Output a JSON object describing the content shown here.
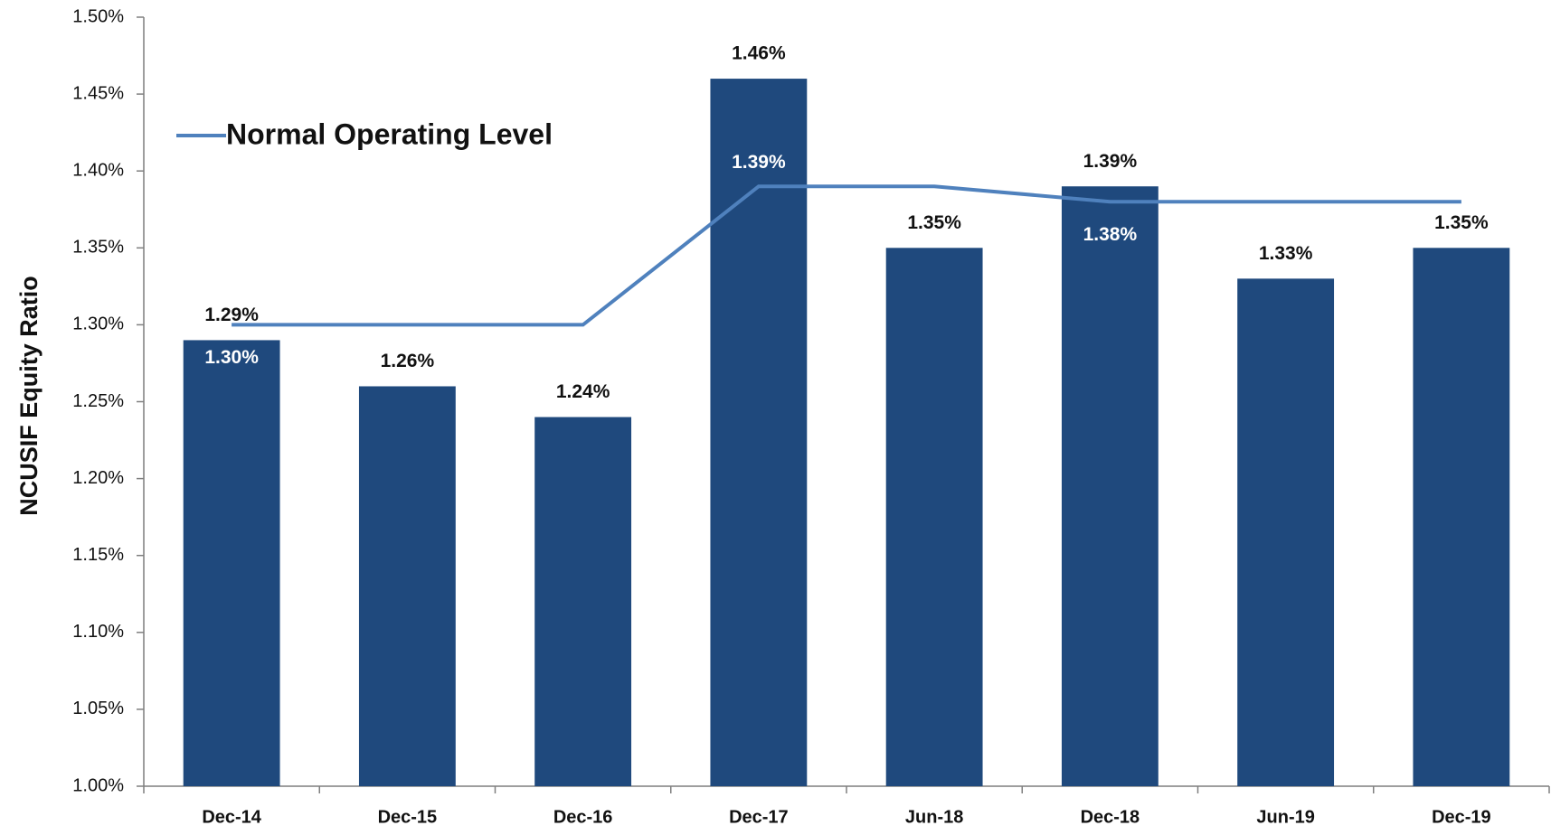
{
  "chart_data": {
    "type": "bar",
    "y_label": "NCUSIF Equity Ratio",
    "categories": [
      "Dec-14",
      "Dec-15",
      "Dec-16",
      "Dec-17",
      "Jun-18",
      "Dec-18",
      "Jun-19",
      "Dec-19"
    ],
    "series": [
      {
        "name": null,
        "type": "bar",
        "color": "#1f497d",
        "values": [
          1.29,
          1.26,
          1.24,
          1.46,
          1.35,
          1.39,
          1.33,
          1.35
        ],
        "value_labels": [
          "1.29%",
          "1.26%",
          "1.24%",
          "1.46%",
          "1.35%",
          "1.39%",
          "1.33%",
          "1.35%"
        ]
      },
      {
        "name": "Normal Operating Level",
        "type": "line",
        "color": "#4f81bd",
        "values": [
          1.3,
          1.3,
          1.3,
          1.39,
          1.39,
          1.38,
          1.38,
          1.38
        ],
        "value_labels": [
          "1.30%",
          null,
          null,
          "1.39%",
          null,
          "1.38%",
          null,
          null
        ]
      }
    ],
    "ylim": [
      1.0,
      1.5
    ],
    "yticks": [
      {
        "value": 1.0,
        "label": "1.00%"
      },
      {
        "value": 1.05,
        "label": "1.05%"
      },
      {
        "value": 1.1,
        "label": "1.10%"
      },
      {
        "value": 1.15,
        "label": "1.15%"
      },
      {
        "value": 1.2,
        "label": "1.20%"
      },
      {
        "value": 1.25,
        "label": "1.25%"
      },
      {
        "value": 1.3,
        "label": "1.30%"
      },
      {
        "value": 1.35,
        "label": "1.35%"
      },
      {
        "value": 1.4,
        "label": "1.40%"
      },
      {
        "value": 1.45,
        "label": "1.45%"
      },
      {
        "value": 1.5,
        "label": "1.50%"
      }
    ],
    "grid": false,
    "legend": "top-left"
  }
}
